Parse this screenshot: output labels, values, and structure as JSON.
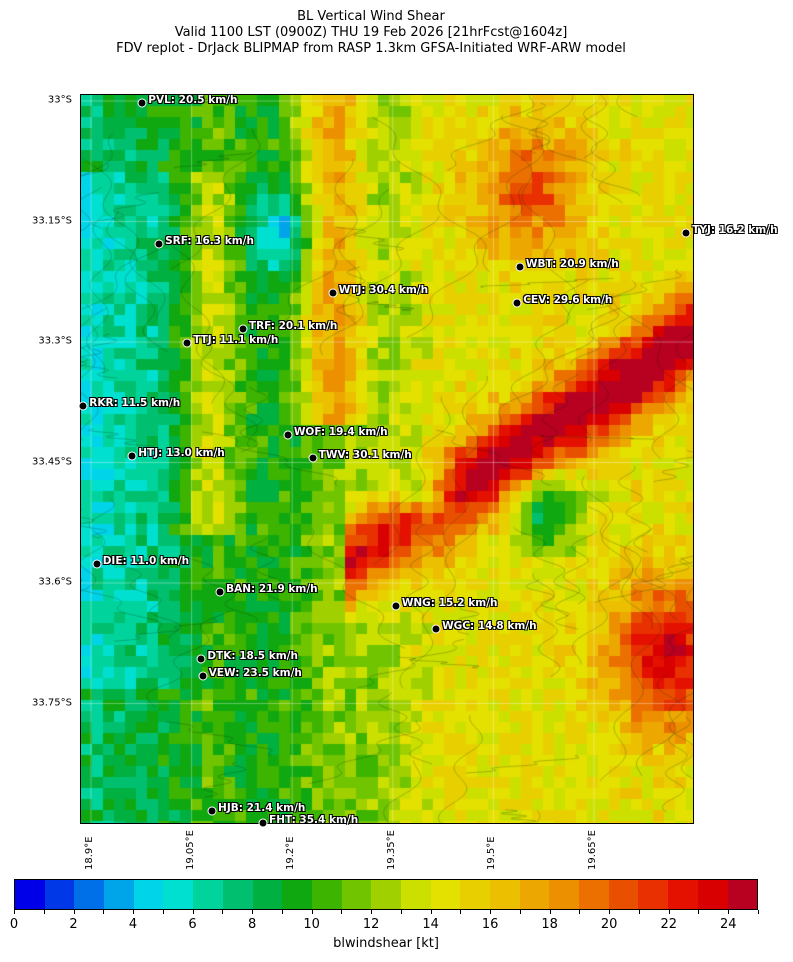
{
  "title_lines": [
    "BL Vertical Wind Shear",
    "Valid 1100 LST (0900Z) THU 19 Feb 2026 [21hrFcst@1604z]",
    "FDV replot - DrJack BLIPMAP from RASP 1.3km GFSA-Initiated WRF-ARW model"
  ],
  "map": {
    "lat_ticks": [
      {
        "v": 33.0,
        "label": "33°S"
      },
      {
        "v": 33.15,
        "label": "33.15°S"
      },
      {
        "v": 33.3,
        "label": "33.3°S"
      },
      {
        "v": 33.45,
        "label": "33.45°S"
      },
      {
        "v": 33.6,
        "label": "33.6°S"
      },
      {
        "v": 33.75,
        "label": "33.75°S"
      }
    ],
    "lon_ticks": [
      {
        "v": 18.9,
        "label": "18.9°E"
      },
      {
        "v": 19.05,
        "label": "19.05°E"
      },
      {
        "v": 19.2,
        "label": "19.2°E"
      },
      {
        "v": 19.35,
        "label": "19.35°E"
      },
      {
        "v": 19.5,
        "label": "19.5°E"
      },
      {
        "v": 19.65,
        "label": "19.65°E"
      }
    ],
    "stations": [
      {
        "label": "PVL: 20.5 km/h",
        "lon": 18.978,
        "lat": 33.004
      },
      {
        "label": "SRF: 16.3 km/h",
        "lon": 19.003,
        "lat": 33.179
      },
      {
        "label": "TYJ: 16.2 km/h",
        "lon": 19.789,
        "lat": 33.166
      },
      {
        "label": "WBT: 20.9 km/h",
        "lon": 19.541,
        "lat": 33.208
      },
      {
        "label": "WTJ: 30.4 km/h",
        "lon": 19.262,
        "lat": 33.24
      },
      {
        "label": "CEV: 29.6 km/h",
        "lon": 19.537,
        "lat": 33.253
      },
      {
        "label": "TRF: 20.1 km/h",
        "lon": 19.128,
        "lat": 33.285
      },
      {
        "label": "TTJ: 11.1 km/h",
        "lon": 19.045,
        "lat": 33.302
      },
      {
        "label": "RKR: 11.5 km/h",
        "lon": 18.89,
        "lat": 33.381
      },
      {
        "label": "WOF: 19.4 km/h",
        "lon": 19.195,
        "lat": 33.417
      },
      {
        "label": "HTJ: 13.0 km/h",
        "lon": 18.963,
        "lat": 33.443
      },
      {
        "label": "TWV: 30.1 km/h",
        "lon": 19.232,
        "lat": 33.446
      },
      {
        "label": "DIE: 11.0 km/h",
        "lon": 18.91,
        "lat": 33.578
      },
      {
        "label": "BAN: 21.9 km/h",
        "lon": 19.094,
        "lat": 33.612
      },
      {
        "label": "WNG: 15.2 km/h",
        "lon": 19.356,
        "lat": 33.63
      },
      {
        "label": "WGC: 14.8 km/h",
        "lon": 19.416,
        "lat": 33.659
      },
      {
        "label": "DTK: 18.5 km/h",
        "lon": 19.066,
        "lat": 33.696
      },
      {
        "label": "VEW: 23.5 km/h",
        "lon": 19.068,
        "lat": 33.717
      },
      {
        "label": "HJB: 21.4 km/h",
        "lon": 19.082,
        "lat": 33.885
      },
      {
        "label": "FHT: 35.4 km/h",
        "lon": 19.158,
        "lat": 33.9
      }
    ]
  },
  "colorbar": {
    "label": "blwindshear [kt]",
    "min": 0,
    "max": 25,
    "tick_labels": [
      "0",
      "2",
      "4",
      "6",
      "8",
      "10",
      "12",
      "14",
      "16",
      "18",
      "20",
      "22",
      "24"
    ],
    "colors": [
      "#0000e8",
      "#0038e8",
      "#0070e8",
      "#00a4e8",
      "#00d4e8",
      "#00e0d0",
      "#00d49c",
      "#00c070",
      "#00b040",
      "#10a810",
      "#3cb400",
      "#70c400",
      "#a0d000",
      "#cce000",
      "#e4e000",
      "#e8d000",
      "#ecc000",
      "#eca800",
      "#ec9000",
      "#ec7000",
      "#e85000",
      "#e83000",
      "#e41000",
      "#d80000",
      "#b80020"
    ]
  }
}
